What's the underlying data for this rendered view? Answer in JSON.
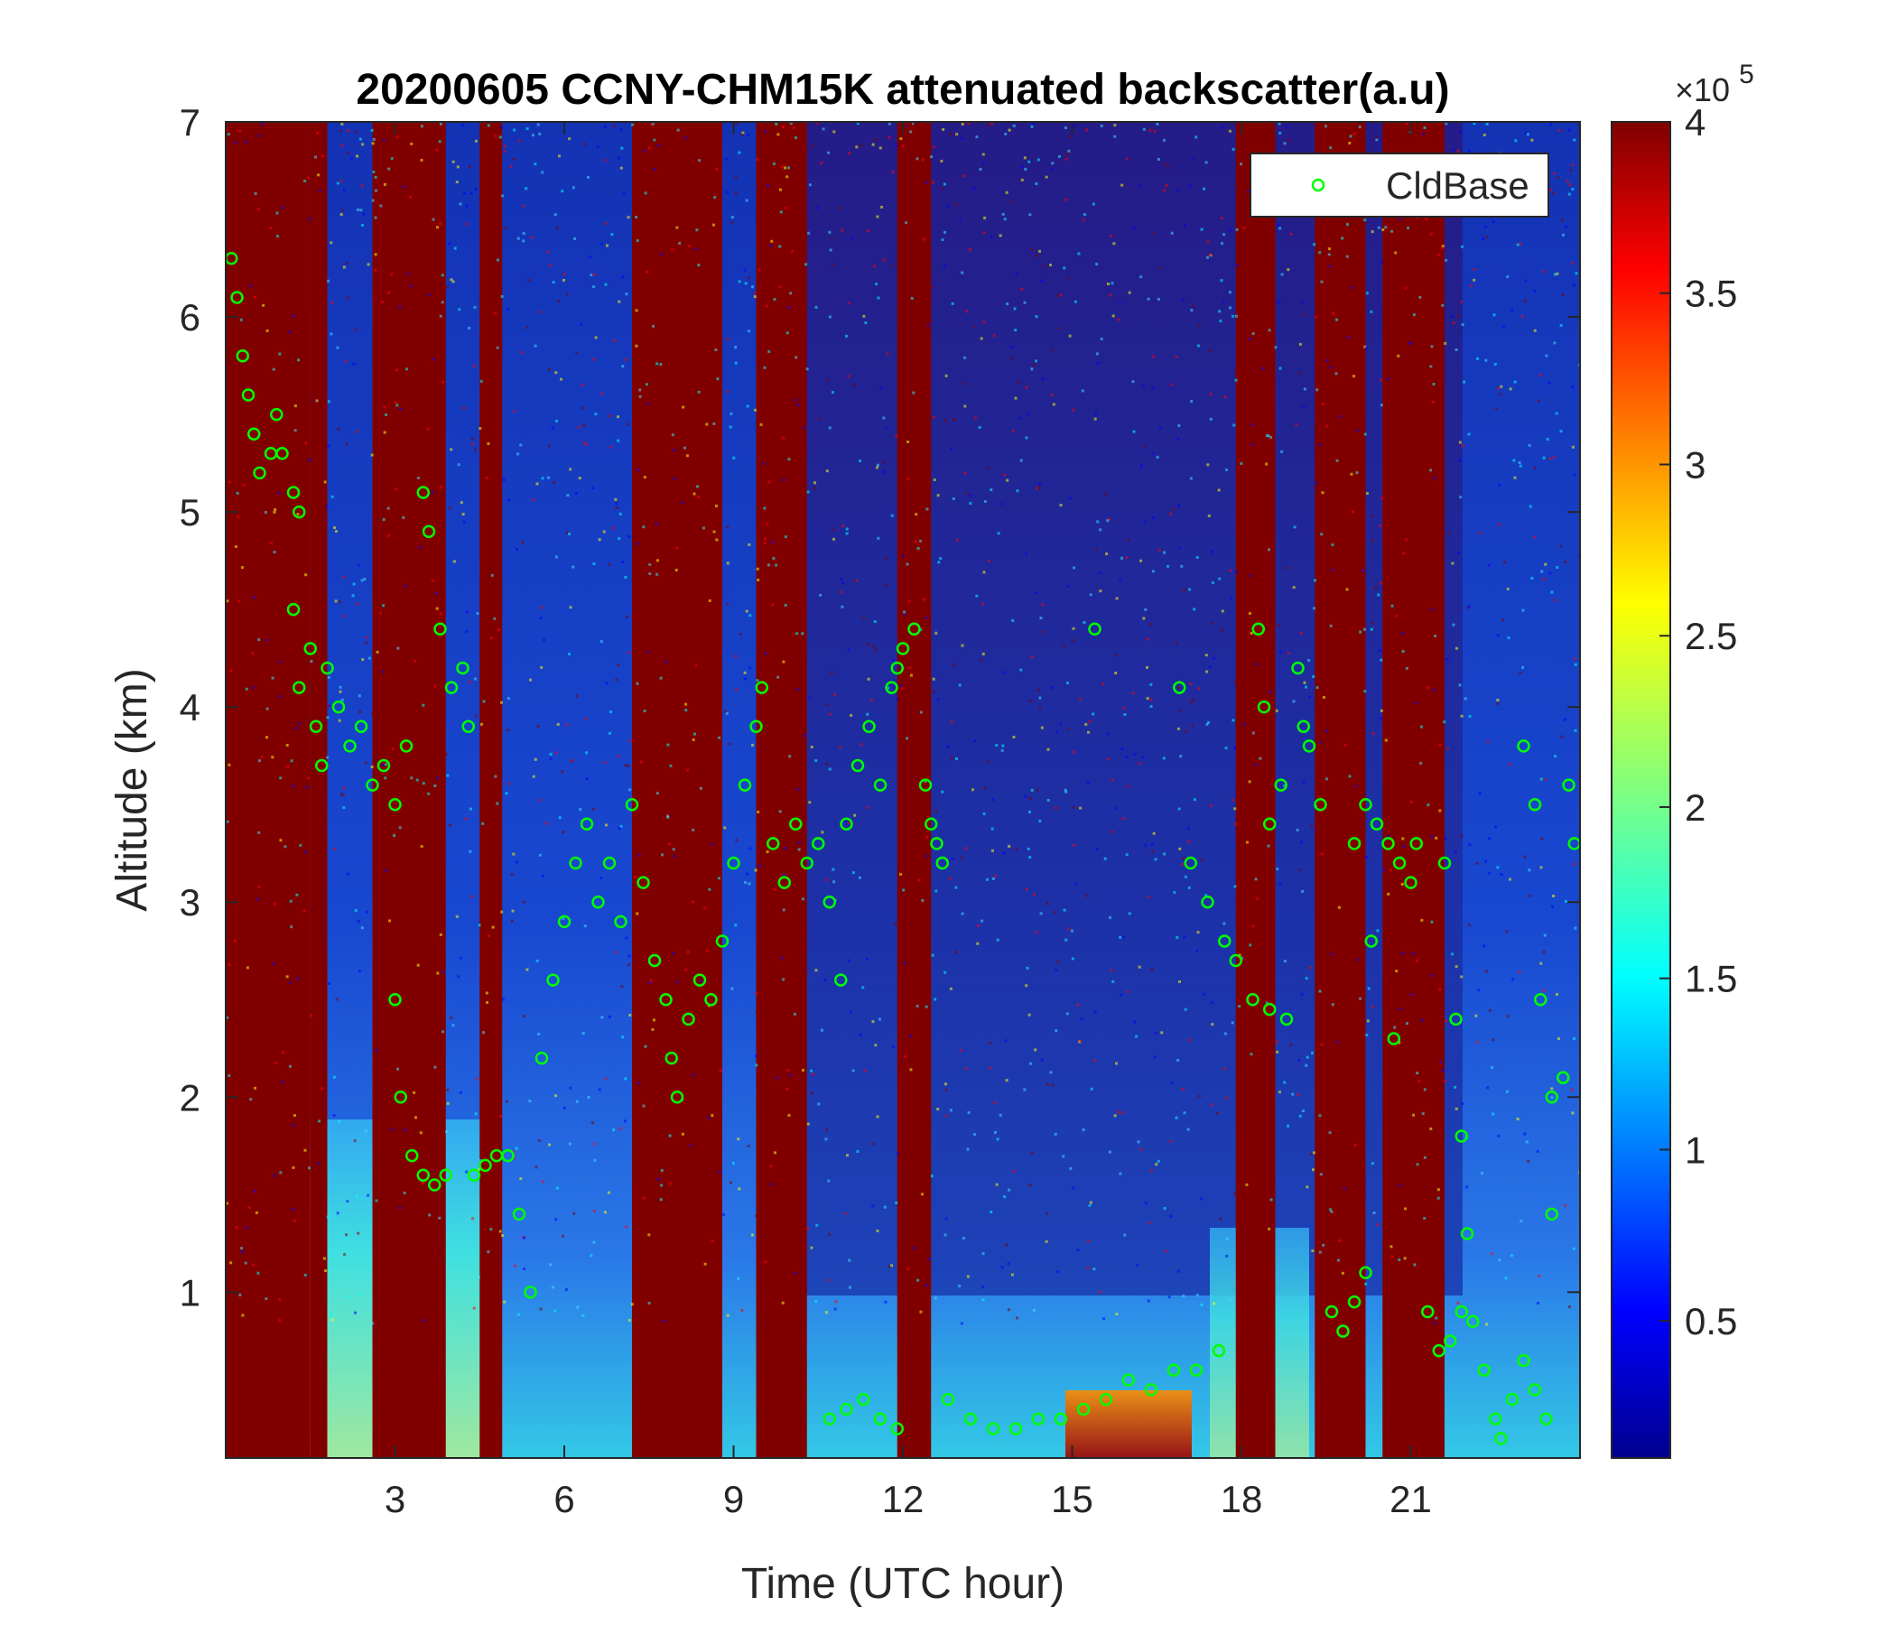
{
  "chart_data": {
    "type": "heatmap",
    "title": "20200605 CCNY-CHM15K attenuated backscatter(a.u)",
    "xlabel": "Time (UTC hour)",
    "ylabel": "Altitude (km)",
    "xlim": [
      0,
      24
    ],
    "ylim": [
      0.15,
      7
    ],
    "xticks": [
      3,
      6,
      9,
      12,
      15,
      18,
      21
    ],
    "xtick_labels": [
      "3",
      "6",
      "9",
      "12",
      "15",
      "18",
      "21"
    ],
    "yticks": [
      1,
      2,
      3,
      4,
      5,
      6,
      7
    ],
    "ytick_labels": [
      "1",
      "2",
      "3",
      "4",
      "5",
      "6",
      "7"
    ],
    "colorbar": {
      "colormap": "jet",
      "clim": [
        0.1,
        4
      ],
      "ticks": [
        0.5,
        1,
        1.5,
        2,
        2.5,
        3,
        3.5,
        4
      ],
      "tick_labels": [
        "0.5",
        "1",
        "1.5",
        "2",
        "2.5",
        "3",
        "3.5",
        "4"
      ],
      "exponent_label_base": "×10",
      "exponent_label_power": "5"
    },
    "legend": {
      "placement": "top-right",
      "entries": [
        {
          "label": "CldBase",
          "marker": "circle",
          "color": "#00ff00"
        }
      ]
    },
    "saturated_columns_hours": [
      [
        0,
        1.5
      ],
      [
        1.5,
        1.8
      ],
      [
        2.6,
        3.4
      ],
      [
        3.4,
        3.8
      ],
      [
        3.6,
        3.9
      ],
      [
        4.5,
        4.9
      ],
      [
        7.2,
        8.8
      ],
      [
        9.4,
        10.3
      ],
      [
        11.9,
        12.5
      ],
      [
        17.9,
        18.6
      ],
      [
        19.3,
        20.2
      ],
      [
        20.5,
        21.6
      ]
    ],
    "series": [
      {
        "name": "CldBase",
        "points": [
          [
            0.1,
            6.3
          ],
          [
            0.2,
            6.1
          ],
          [
            0.3,
            5.8
          ],
          [
            0.4,
            5.6
          ],
          [
            0.5,
            5.4
          ],
          [
            0.6,
            5.2
          ],
          [
            0.8,
            5.3
          ],
          [
            0.9,
            5.5
          ],
          [
            1.0,
            5.3
          ],
          [
            1.2,
            5.1
          ],
          [
            1.3,
            5.0
          ],
          [
            1.2,
            4.5
          ],
          [
            1.3,
            4.1
          ],
          [
            1.5,
            4.3
          ],
          [
            1.6,
            3.9
          ],
          [
            1.7,
            3.7
          ],
          [
            1.8,
            4.2
          ],
          [
            2.0,
            4.0
          ],
          [
            2.2,
            3.8
          ],
          [
            2.4,
            3.9
          ],
          [
            2.6,
            3.6
          ],
          [
            2.8,
            3.7
          ],
          [
            3.0,
            3.5
          ],
          [
            3.2,
            3.8
          ],
          [
            3.0,
            2.5
          ],
          [
            3.1,
            2.0
          ],
          [
            3.3,
            1.7
          ],
          [
            3.5,
            1.6
          ],
          [
            3.7,
            1.55
          ],
          [
            3.9,
            1.6
          ],
          [
            4.0,
            4.1
          ],
          [
            4.2,
            4.2
          ],
          [
            4.3,
            3.9
          ],
          [
            4.4,
            1.6
          ],
          [
            4.6,
            1.65
          ],
          [
            4.8,
            1.7
          ],
          [
            5.0,
            1.7
          ],
          [
            3.5,
            5.1
          ],
          [
            3.6,
            4.9
          ],
          [
            3.8,
            4.4
          ],
          [
            5.2,
            1.4
          ],
          [
            5.4,
            1.0
          ],
          [
            5.6,
            2.2
          ],
          [
            5.8,
            2.6
          ],
          [
            6.0,
            2.9
          ],
          [
            6.2,
            3.2
          ],
          [
            6.4,
            3.4
          ],
          [
            6.6,
            3.0
          ],
          [
            6.8,
            3.2
          ],
          [
            7.0,
            2.9
          ],
          [
            7.2,
            3.5
          ],
          [
            7.4,
            3.1
          ],
          [
            7.6,
            2.7
          ],
          [
            7.8,
            2.5
          ],
          [
            7.9,
            2.2
          ],
          [
            8.0,
            2.0
          ],
          [
            8.2,
            2.4
          ],
          [
            8.4,
            2.6
          ],
          [
            8.6,
            2.5
          ],
          [
            8.8,
            2.8
          ],
          [
            9.0,
            3.2
          ],
          [
            9.2,
            3.6
          ],
          [
            9.4,
            3.9
          ],
          [
            9.5,
            4.1
          ],
          [
            9.7,
            3.3
          ],
          [
            9.9,
            3.1
          ],
          [
            10.1,
            3.4
          ],
          [
            10.3,
            3.2
          ],
          [
            10.5,
            3.3
          ],
          [
            10.7,
            3.0
          ],
          [
            10.9,
            2.6
          ],
          [
            11.0,
            3.4
          ],
          [
            11.2,
            3.7
          ],
          [
            11.4,
            3.9
          ],
          [
            11.6,
            3.6
          ],
          [
            11.8,
            4.1
          ],
          [
            11.9,
            4.2
          ],
          [
            12.0,
            4.3
          ],
          [
            12.2,
            4.4
          ],
          [
            12.4,
            3.6
          ],
          [
            12.5,
            3.4
          ],
          [
            12.6,
            3.3
          ],
          [
            12.7,
            3.2
          ],
          [
            10.7,
            0.35
          ],
          [
            11.0,
            0.4
          ],
          [
            11.3,
            0.45
          ],
          [
            11.6,
            0.35
          ],
          [
            11.9,
            0.3
          ],
          [
            12.8,
            0.45
          ],
          [
            13.2,
            0.35
          ],
          [
            13.6,
            0.3
          ],
          [
            14.0,
            0.3
          ],
          [
            14.4,
            0.35
          ],
          [
            14.8,
            0.35
          ],
          [
            15.2,
            0.4
          ],
          [
            15.6,
            0.45
          ],
          [
            16.0,
            0.55
          ],
          [
            16.4,
            0.5
          ],
          [
            16.8,
            0.6
          ],
          [
            17.2,
            0.6
          ],
          [
            17.6,
            0.7
          ],
          [
            15.4,
            4.4
          ],
          [
            16.9,
            4.1
          ],
          [
            17.1,
            3.2
          ],
          [
            17.4,
            3.0
          ],
          [
            17.7,
            2.8
          ],
          [
            17.9,
            2.7
          ],
          [
            18.2,
            2.5
          ],
          [
            18.5,
            2.45
          ],
          [
            18.8,
            2.4
          ],
          [
            18.3,
            4.4
          ],
          [
            18.4,
            4.0
          ],
          [
            18.5,
            3.4
          ],
          [
            18.7,
            3.6
          ],
          [
            19.0,
            4.2
          ],
          [
            19.1,
            3.9
          ],
          [
            19.2,
            3.8
          ],
          [
            19.4,
            3.5
          ],
          [
            19.6,
            0.9
          ],
          [
            19.8,
            0.8
          ],
          [
            20.0,
            0.95
          ],
          [
            20.2,
            1.1
          ],
          [
            20.0,
            3.3
          ],
          [
            20.2,
            3.5
          ],
          [
            20.4,
            3.4
          ],
          [
            20.6,
            3.3
          ],
          [
            20.8,
            3.2
          ],
          [
            21.0,
            3.1
          ],
          [
            21.1,
            3.3
          ],
          [
            20.3,
            2.8
          ],
          [
            20.7,
            2.3
          ],
          [
            21.3,
            0.9
          ],
          [
            21.5,
            0.7
          ],
          [
            21.7,
            0.75
          ],
          [
            21.9,
            0.9
          ],
          [
            22.1,
            0.85
          ],
          [
            21.6,
            3.2
          ],
          [
            21.8,
            2.4
          ],
          [
            21.9,
            1.8
          ],
          [
            22.0,
            1.3
          ],
          [
            22.3,
            0.6
          ],
          [
            22.5,
            0.35
          ],
          [
            22.6,
            0.25
          ],
          [
            22.8,
            0.45
          ],
          [
            23.0,
            0.65
          ],
          [
            23.2,
            0.5
          ],
          [
            23.4,
            0.35
          ],
          [
            23.0,
            3.8
          ],
          [
            23.2,
            3.5
          ],
          [
            23.3,
            2.5
          ],
          [
            23.5,
            2.0
          ],
          [
            23.7,
            2.1
          ],
          [
            23.8,
            3.6
          ],
          [
            23.9,
            3.3
          ],
          [
            23.5,
            1.4
          ]
        ]
      }
    ]
  }
}
